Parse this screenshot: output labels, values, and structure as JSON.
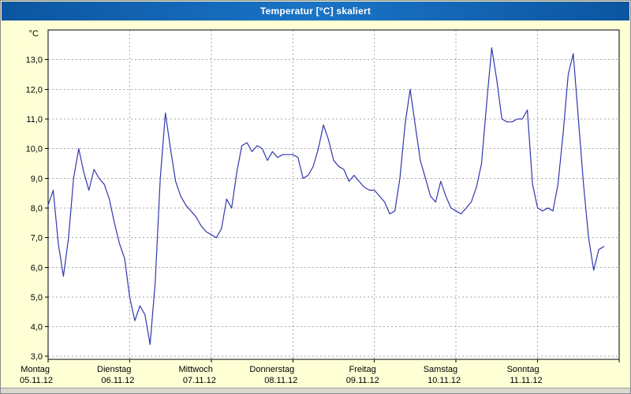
{
  "window": {
    "title": "Temperatur [°C] skaliert"
  },
  "chart_data": {
    "type": "line",
    "title": "Temperatur [°C] skaliert",
    "unit_label": "°C",
    "xlabel": "",
    "ylabel": "°C",
    "ylim": [
      2.9,
      14.0
    ],
    "grid": true,
    "legend": "none",
    "colors": {
      "line": "#3138ad",
      "grid": "#a6a6a6",
      "plot_bg": "#ffffff",
      "page_bg": "#ffffd6",
      "titlebar": "#1567b2",
      "axis": "#000000"
    },
    "y_ticks": [
      {
        "value": 3,
        "label": "3,0"
      },
      {
        "value": 4,
        "label": "4,0"
      },
      {
        "value": 5,
        "label": "5,0"
      },
      {
        "value": 6,
        "label": "6,0"
      },
      {
        "value": 7,
        "label": "7,0"
      },
      {
        "value": 8,
        "label": "8,0"
      },
      {
        "value": 9,
        "label": "9,0"
      },
      {
        "value": 10,
        "label": "10,0"
      },
      {
        "value": 11,
        "label": "11,0"
      },
      {
        "value": 12,
        "label": "12,0"
      },
      {
        "value": 13,
        "label": "13,0"
      }
    ],
    "x_days": [
      {
        "name": "Montag",
        "date": "05.11.12"
      },
      {
        "name": "Dienstag",
        "date": "06.11.12"
      },
      {
        "name": "Mittwoch",
        "date": "07.11.12"
      },
      {
        "name": "Donnerstag",
        "date": "08.11.12"
      },
      {
        "name": "Freitag",
        "date": "09.11.12"
      },
      {
        "name": "Samstag",
        "date": "10.11.12"
      },
      {
        "name": "Sonntag",
        "date": "11.11.12"
      }
    ],
    "total_hours": 168,
    "step_hours": 1.5,
    "series": [
      {
        "name": "Temperatur",
        "values": [
          8.1,
          8.6,
          6.8,
          5.7,
          7.0,
          9.0,
          10.0,
          9.2,
          8.6,
          9.3,
          9.0,
          8.8,
          8.3,
          7.5,
          6.8,
          6.3,
          5.0,
          4.2,
          4.7,
          4.4,
          3.4,
          5.5,
          9.0,
          11.2,
          10.0,
          8.9,
          8.4,
          8.1,
          7.9,
          7.7,
          7.4,
          7.2,
          7.1,
          7.0,
          7.3,
          8.3,
          8.0,
          9.2,
          10.1,
          10.2,
          9.9,
          10.1,
          10.0,
          9.6,
          9.9,
          9.7,
          9.8,
          9.8,
          9.8,
          9.7,
          9.0,
          9.1,
          9.4,
          10.0,
          10.8,
          10.3,
          9.6,
          9.4,
          9.3,
          8.9,
          9.1,
          8.9,
          8.7,
          8.6,
          8.6,
          8.4,
          8.2,
          7.8,
          7.9,
          9.0,
          10.8,
          12.0,
          10.8,
          9.6,
          9.0,
          8.4,
          8.2,
          8.9,
          8.4,
          8.0,
          7.9,
          7.8,
          8.0,
          8.2,
          8.7,
          9.5,
          11.5,
          13.4,
          12.3,
          11.0,
          10.9,
          10.9,
          11.0,
          11.0,
          11.3,
          8.8,
          8.0,
          7.9,
          8.0,
          7.9,
          8.8,
          10.5,
          12.5,
          13.2,
          11.0,
          8.8,
          7.0,
          5.9,
          6.6,
          6.7
        ]
      }
    ]
  }
}
